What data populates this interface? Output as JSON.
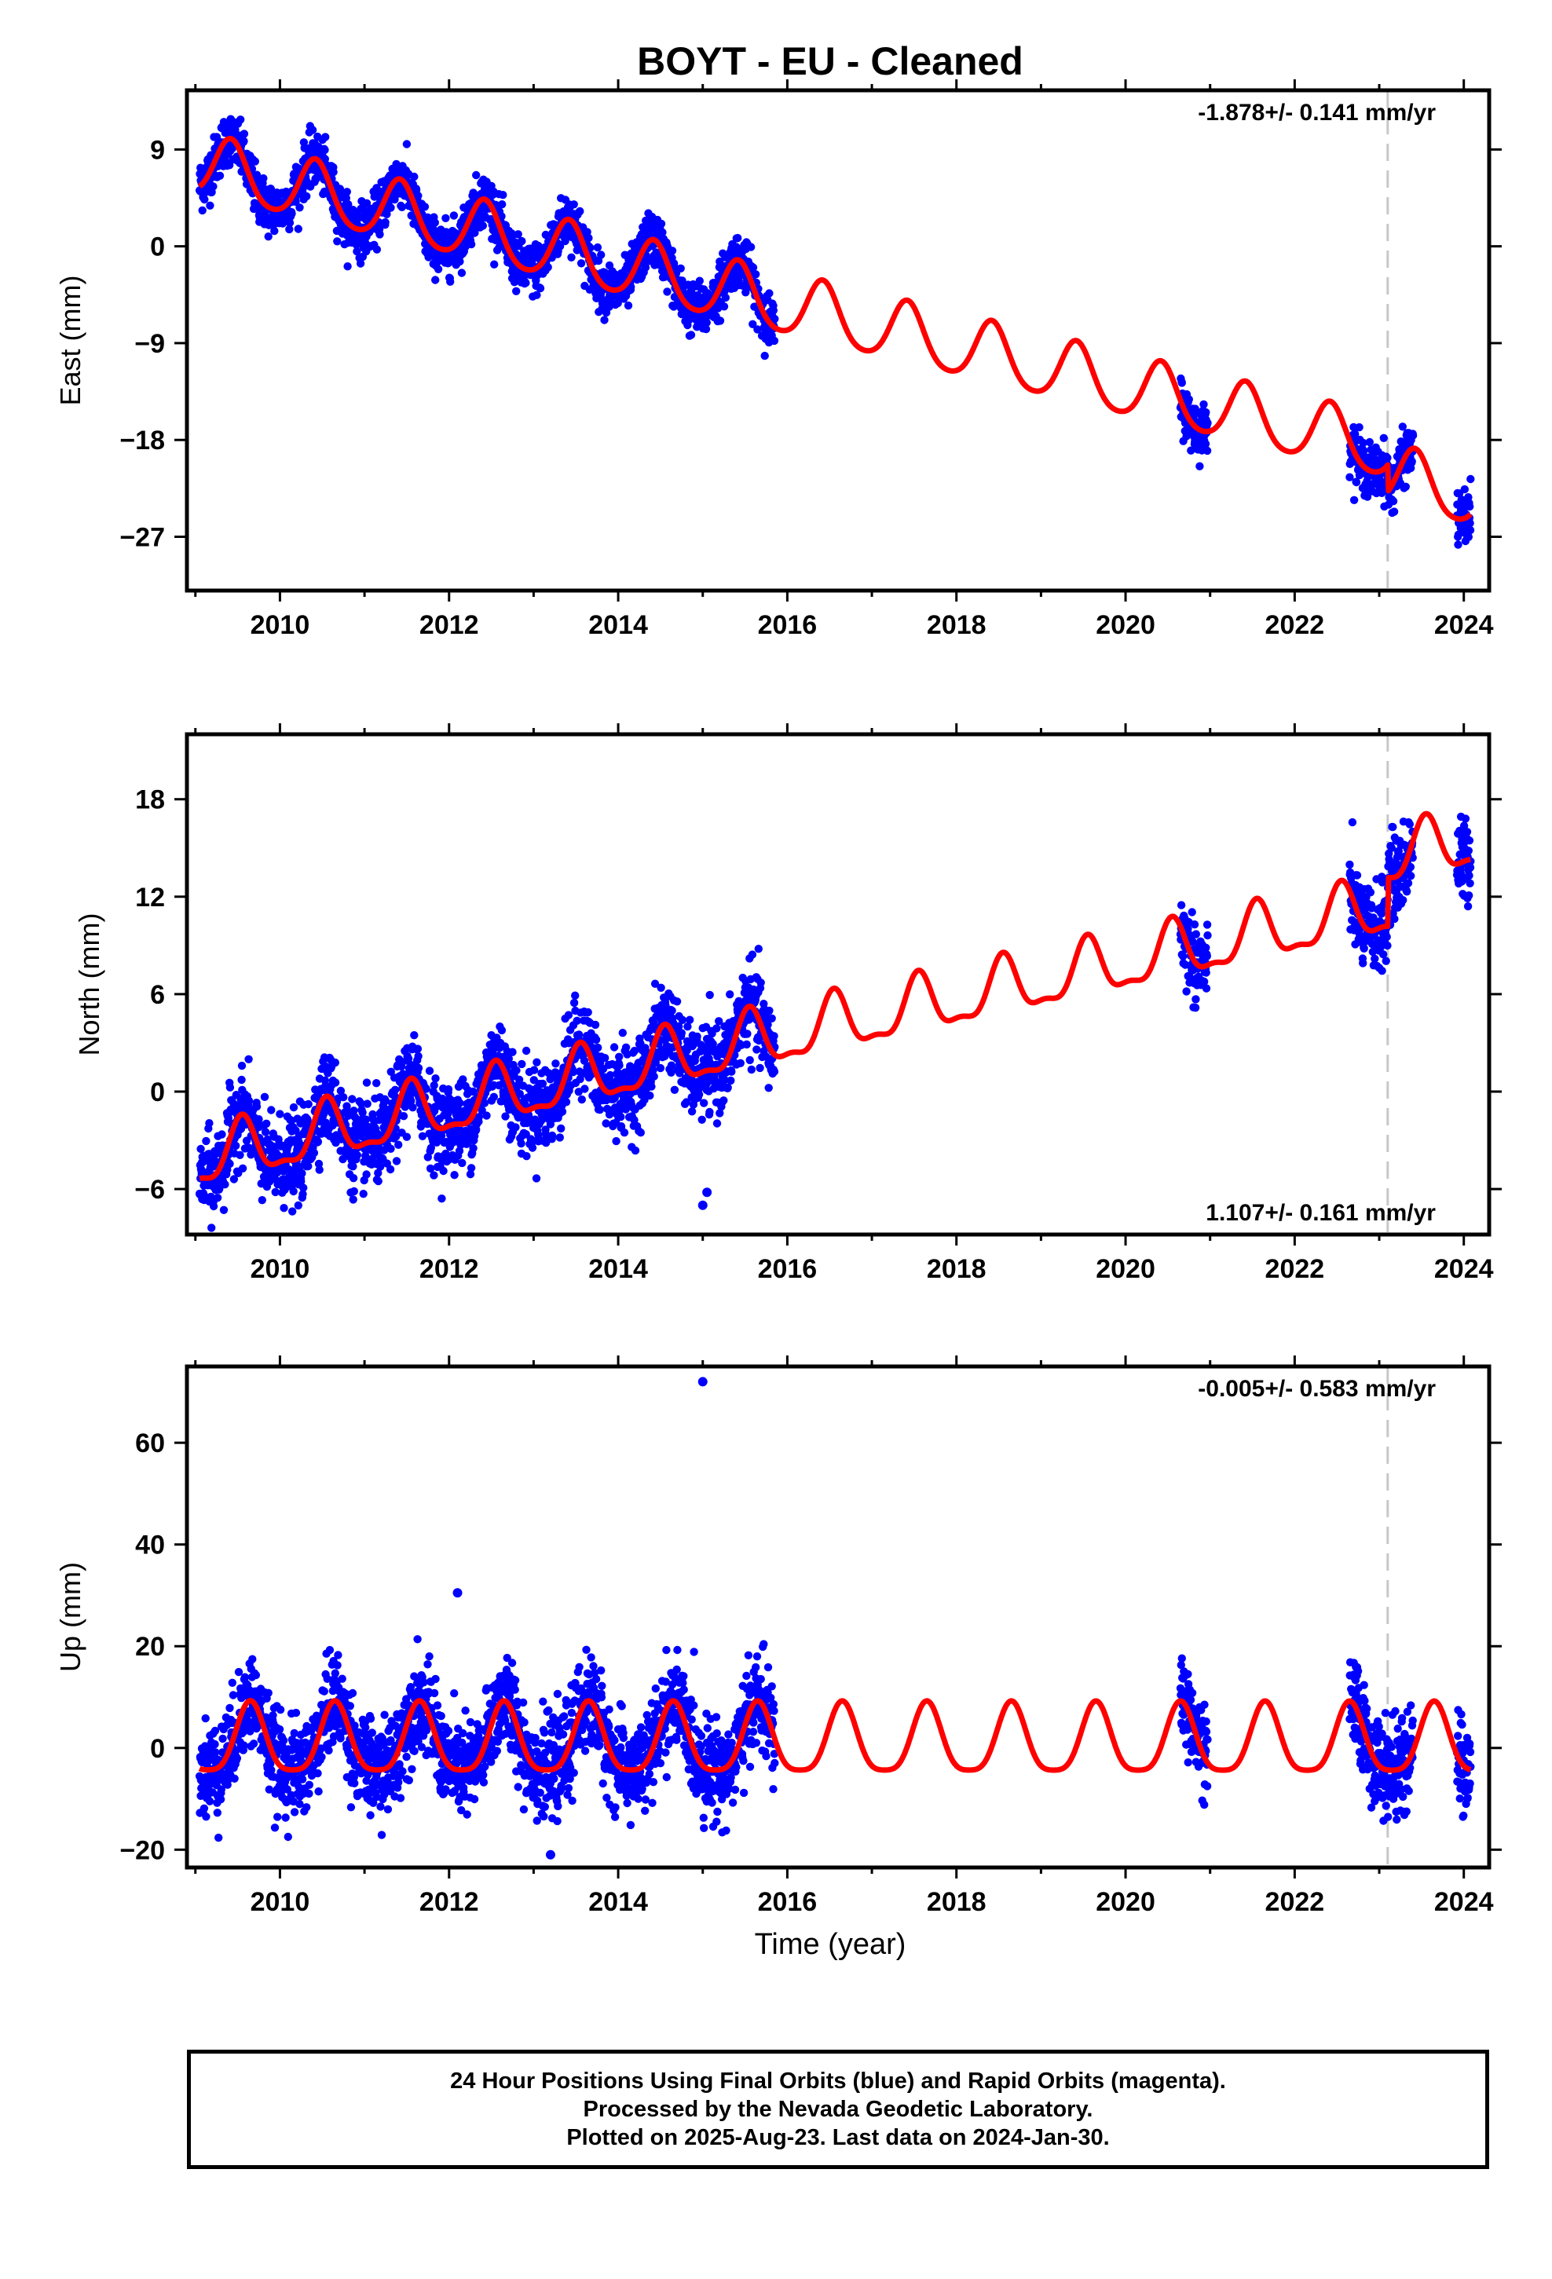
{
  "title": "BOYT  - EU - Cleaned",
  "xlabel": "Time (year)",
  "footer": {
    "line1": "24 Hour Positions Using Final Orbits (blue) and Rapid Orbits (magenta).",
    "line2": "Processed by the Nevada Geodetic Laboratory.",
    "line3": "Plotted on 2025-Aug-23. Last data on 2024-Jan-30."
  },
  "colors": {
    "data": "#0000ff",
    "model": "#ff0000",
    "event_line": "#c8c8c8",
    "frame": "#000000"
  },
  "chart_data": [
    {
      "type": "scatter",
      "component": "East",
      "ylabel": "East (mm)",
      "rate_text": "-1.878+/- 0.141 mm/yr",
      "rate_position": "top-right",
      "xlim": [
        2008.9,
        2024.3
      ],
      "ylim": [
        -32,
        14.5
      ],
      "yticks": [
        9,
        0,
        -9,
        -18,
        -27
      ],
      "xticks": [
        2010,
        2012,
        2014,
        2016,
        2018,
        2020,
        2022,
        2024
      ],
      "event_line_x": 2023.1,
      "model": {
        "intercept": 7.6,
        "trend": -1.878,
        "ann_amp": 2.8,
        "ann_peak": 0.42,
        "semi_amp": 0.4,
        "steps": [
          {
            "x": 2023.1,
            "dy": -2.5
          }
        ]
      },
      "data_spans": [
        [
          2009.05,
          2015.85
        ],
        [
          2020.65,
          2020.97
        ],
        [
          2022.65,
          2023.4
        ],
        [
          2023.92,
          2024.08
        ]
      ],
      "noise": 1.2,
      "outliers": []
    },
    {
      "type": "scatter",
      "component": "North",
      "ylabel": "North (mm)",
      "rate_text": "1.107+/- 0.161 mm/yr",
      "rate_position": "bottom-right",
      "xlim": [
        2008.9,
        2024.3
      ],
      "ylim": [
        -8.8,
        22
      ],
      "yticks": [
        18,
        12,
        6,
        0,
        -6
      ],
      "xticks": [
        2010,
        2012,
        2014,
        2016,
        2018,
        2020,
        2022,
        2024
      ],
      "event_line_x": 2023.1,
      "model": {
        "intercept": -4.3,
        "trend": 1.107,
        "ann_amp": 1.7,
        "ann_peak": 0.55,
        "semi_amp": 0.6,
        "steps": [
          {
            "x": 2023.1,
            "dy": 3.0
          }
        ]
      },
      "data_spans": [
        [
          2009.05,
          2015.85
        ],
        [
          2020.65,
          2020.97
        ],
        [
          2022.65,
          2023.4
        ],
        [
          2023.92,
          2024.08
        ]
      ],
      "noise": 1.3,
      "outliers": [
        [
          2015.0,
          -7.0
        ],
        [
          2015.05,
          -6.2
        ]
      ]
    },
    {
      "type": "scatter",
      "component": "Up",
      "ylabel": "Up (mm)",
      "rate_text": "-0.005+/- 0.583 mm/yr",
      "rate_position": "top-right",
      "xlim": [
        2008.9,
        2024.3
      ],
      "ylim": [
        -23.5,
        75
      ],
      "yticks": [
        60,
        40,
        20,
        0,
        -20
      ],
      "xticks": [
        2010,
        2012,
        2014,
        2016,
        2018,
        2020,
        2022,
        2024
      ],
      "event_line_x": 2023.1,
      "model": {
        "intercept": 1.0,
        "trend": -0.005,
        "ann_amp": 6.8,
        "ann_peak": 0.65,
        "semi_amp": 1.5,
        "steps": []
      },
      "data_spans": [
        [
          2009.05,
          2015.85
        ],
        [
          2020.65,
          2020.97
        ],
        [
          2022.65,
          2023.4
        ],
        [
          2023.92,
          2024.08
        ]
      ],
      "noise": 4.5,
      "outliers": [
        [
          2015.0,
          72
        ],
        [
          2012.1,
          30.5
        ],
        [
          2013.2,
          -21
        ]
      ]
    }
  ]
}
